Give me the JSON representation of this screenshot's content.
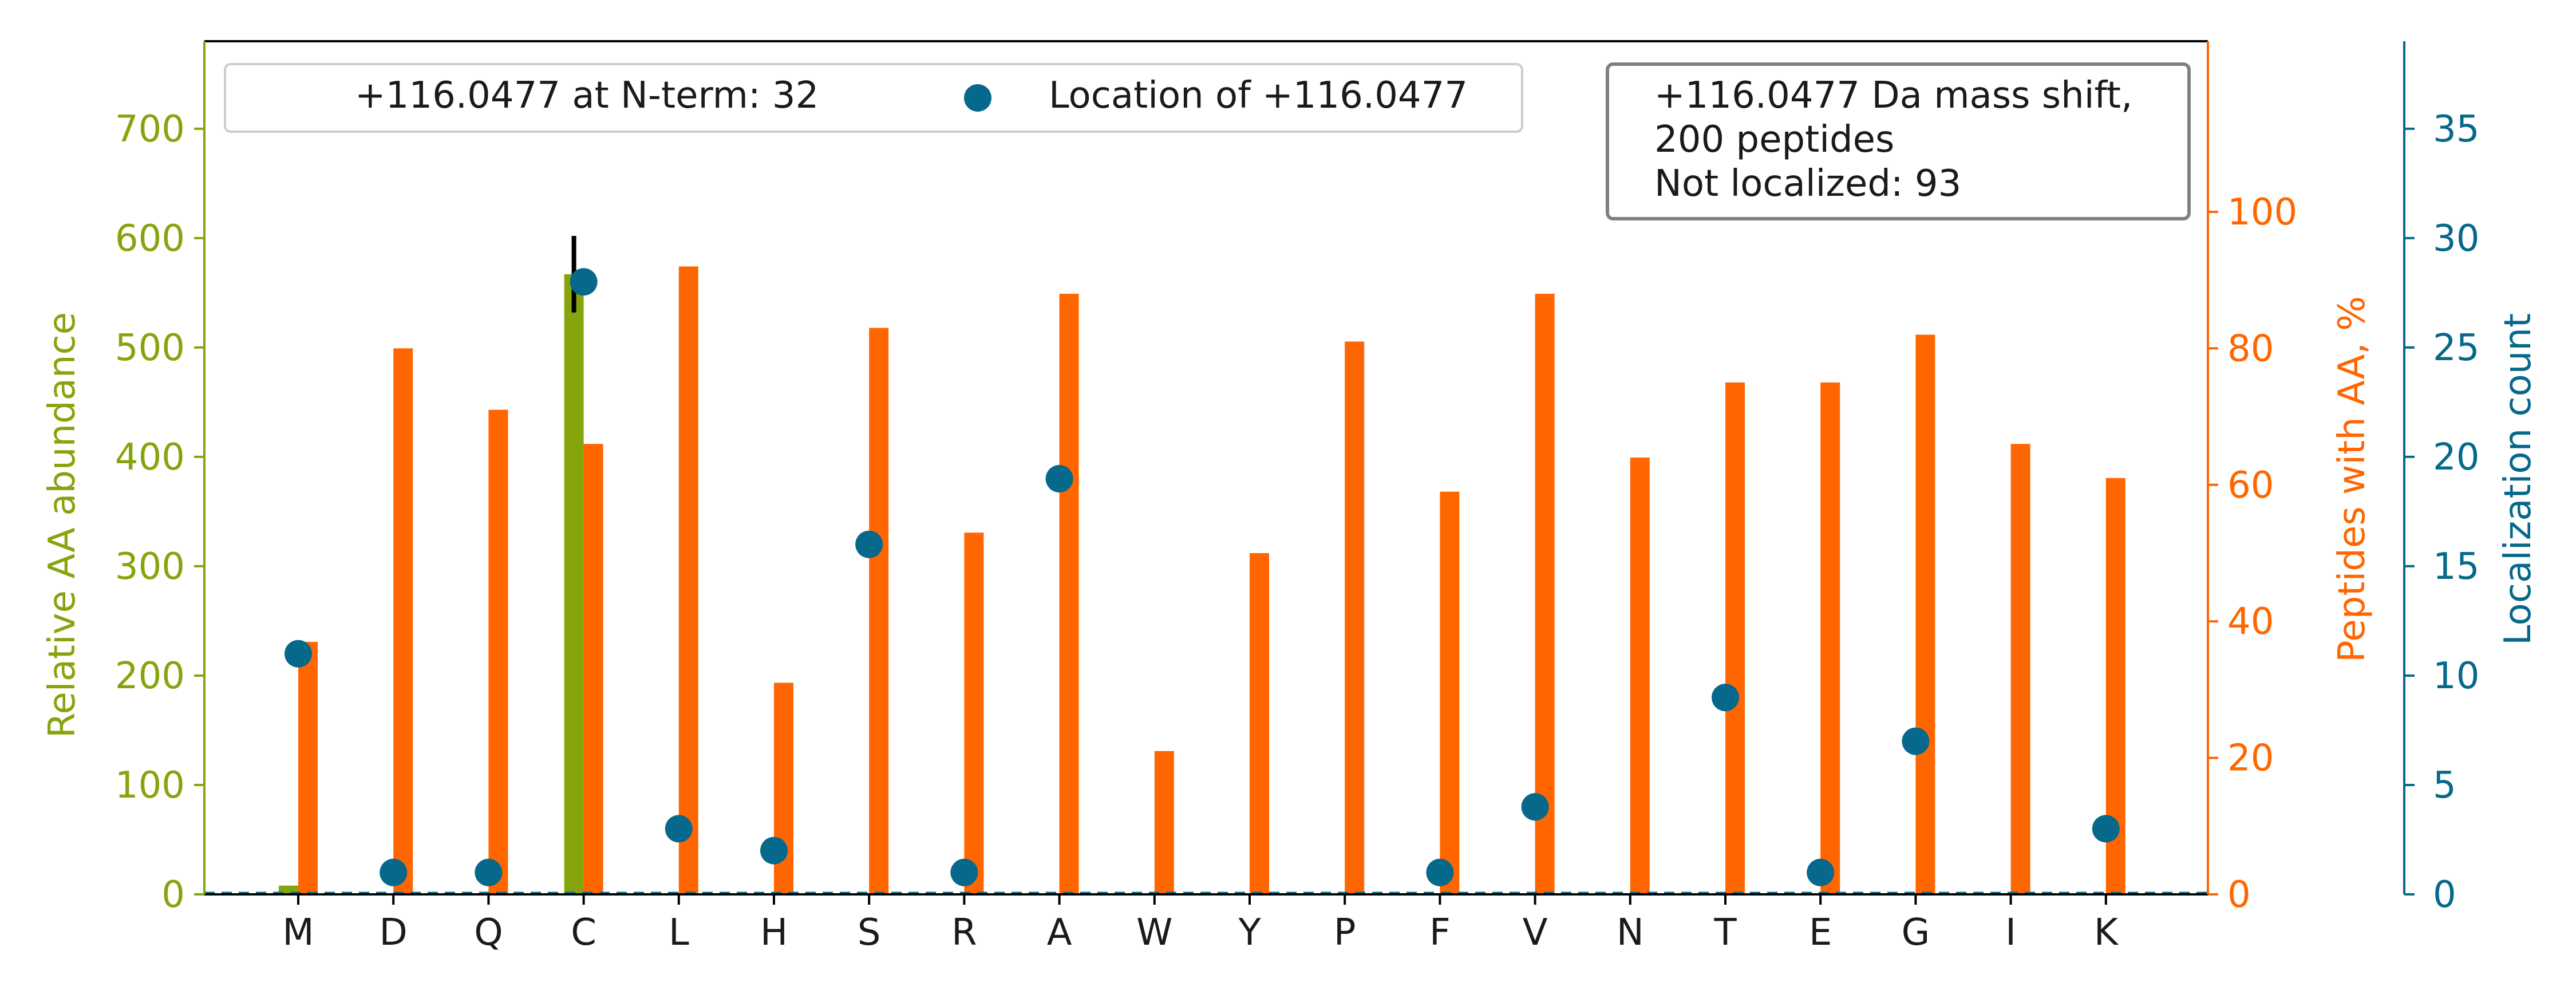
{
  "chart_data": {
    "type": "bar",
    "categories": [
      "M",
      "D",
      "Q",
      "C",
      "L",
      "H",
      "S",
      "R",
      "A",
      "W",
      "Y",
      "P",
      "F",
      "V",
      "N",
      "T",
      "E",
      "G",
      "I",
      "K"
    ],
    "series": [
      {
        "name": "",
        "axis": "left",
        "color": "#86a40c",
        "values": [
          8,
          0,
          0,
          567,
          0,
          0,
          0,
          0,
          0,
          0,
          0,
          0,
          0,
          0,
          0,
          0,
          0,
          0,
          0,
          0
        ],
        "error": [
          0,
          0,
          0,
          35,
          0,
          0,
          0,
          0,
          0,
          0,
          0,
          0,
          0,
          0,
          0,
          0,
          0,
          0,
          0,
          0
        ]
      },
      {
        "name": "",
        "axis": "right",
        "color": "#ff6600",
        "values": [
          37,
          80,
          71,
          66,
          92,
          31,
          83,
          53,
          88,
          21,
          50,
          81,
          59,
          88,
          64,
          75,
          75,
          82,
          66,
          61
        ]
      },
      {
        "name": "Location of +116.0477",
        "axis": "right2",
        "type": "scatter",
        "color": "#06688a",
        "values": [
          11,
          1,
          1,
          28,
          3,
          2,
          16,
          1,
          19,
          0,
          0,
          0,
          1,
          4,
          0,
          9,
          1,
          7,
          0,
          3
        ]
      }
    ],
    "left_axis": {
      "label": "Relative AA abundance",
      "ylim": [
        0,
        780
      ],
      "ticks": [
        0,
        100,
        200,
        300,
        400,
        500,
        600,
        700
      ],
      "color": "#86a40c"
    },
    "right_axis": {
      "label": "Peptides with AA, %",
      "ylim": [
        0,
        125
      ],
      "ticks": [
        0,
        20,
        40,
        60,
        80,
        100
      ],
      "color": "#ff6600"
    },
    "right2_axis": {
      "label": "Localization count",
      "ylim": [
        0,
        39
      ],
      "ticks": [
        0,
        5,
        10,
        15,
        20,
        25,
        30,
        35
      ],
      "color": "#06688a"
    },
    "legend": {
      "placement": "top-left",
      "nterm_text": "+116.0477 at N-term: 32",
      "location_text": "Location of +116.0477"
    },
    "annotation": {
      "placement": "top-right",
      "lines": [
        "+116.0477 Da mass shift,",
        "200 peptides",
        "Not localized: 93"
      ]
    }
  }
}
